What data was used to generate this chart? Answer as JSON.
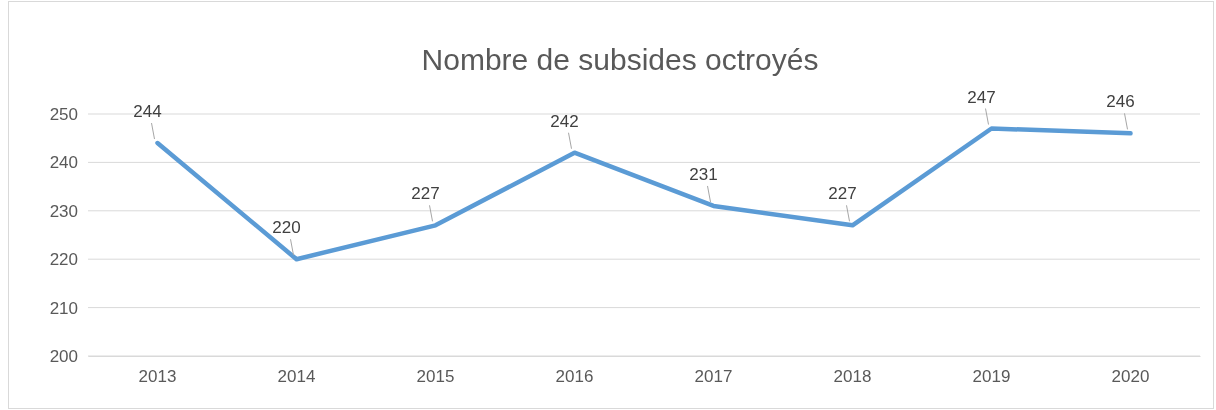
{
  "chart_data": {
    "type": "line",
    "title": "Nombre de subsides octroyés",
    "categories": [
      "2013",
      "2014",
      "2015",
      "2016",
      "2017",
      "2018",
      "2019",
      "2020"
    ],
    "series": [
      {
        "color": "#5b9bd5",
        "values": [
          244,
          220,
          227,
          242,
          231,
          227,
          247,
          246
        ]
      }
    ],
    "ylim": [
      200,
      250
    ],
    "yticks": [
      200,
      210,
      220,
      230,
      240,
      250
    ],
    "grid": "y",
    "data_labels": true,
    "marker": "none",
    "line_style": "solid"
  }
}
